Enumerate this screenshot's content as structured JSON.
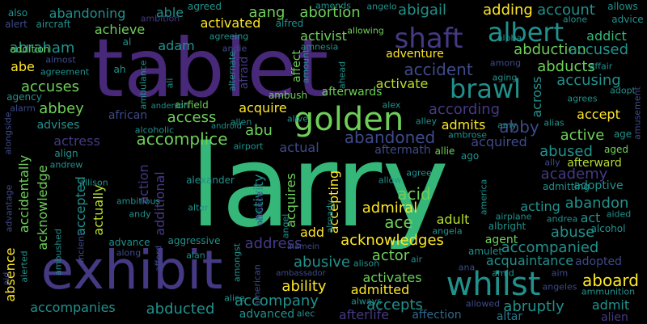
{
  "colors": {
    "background": "#000000",
    "purple": "#482878",
    "dark_teal": "#2a788e",
    "teal": "#21918c",
    "blue_teal": "#31688e",
    "indigo": "#443983",
    "violet": "#3e4a89",
    "green": "#35b779",
    "light_green": "#6ece58",
    "lime": "#b5de2b",
    "yellow": "#fde725"
  },
  "words": [
    {
      "text": "larry",
      "color": "green"
    },
    {
      "text": "tablet",
      "color": "purple"
    },
    {
      "text": "exhibit",
      "color": "indigo"
    },
    {
      "text": "whilst",
      "color": "teal"
    },
    {
      "text": "golden",
      "color": "light_green"
    },
    {
      "text": "shaft",
      "color": "indigo"
    },
    {
      "text": "albert",
      "color": "teal"
    },
    {
      "text": "brawl",
      "color": "teal"
    },
    {
      "text": "accomplice",
      "color": "light_green"
    },
    {
      "text": "abandoned",
      "color": "violet"
    },
    {
      "text": "abduction",
      "color": "light_green"
    },
    {
      "text": "accused",
      "color": "teal"
    },
    {
      "text": "abducts",
      "color": "light_green"
    },
    {
      "text": "accusing",
      "color": "teal"
    },
    {
      "text": "accident",
      "color": "violet"
    },
    {
      "text": "according",
      "color": "indigo"
    },
    {
      "text": "activate",
      "color": "lime"
    },
    {
      "text": "accept",
      "color": "yellow"
    },
    {
      "text": "access",
      "color": "light_green"
    },
    {
      "text": "abbey",
      "color": "light_green"
    },
    {
      "text": "accuses",
      "color": "light_green"
    },
    {
      "text": "abraham",
      "color": "teal"
    },
    {
      "text": "abandoning",
      "color": "teal"
    },
    {
      "text": "achieve",
      "color": "light_green"
    },
    {
      "text": "able",
      "color": "teal"
    },
    {
      "text": "aang",
      "color": "light_green"
    },
    {
      "text": "abortion",
      "color": "light_green"
    },
    {
      "text": "abigail",
      "color": "teal"
    },
    {
      "text": "adding",
      "color": "yellow"
    },
    {
      "text": "account",
      "color": "teal"
    },
    {
      "text": "activated",
      "color": "yellow"
    },
    {
      "text": "activist",
      "color": "light_green"
    },
    {
      "text": "addict",
      "color": "green"
    },
    {
      "text": "adam",
      "color": "teal"
    },
    {
      "text": "abe",
      "color": "yellow"
    },
    {
      "text": "addition",
      "color": "light_green"
    },
    {
      "text": "acquire",
      "color": "yellow"
    },
    {
      "text": "abu",
      "color": "light_green"
    },
    {
      "text": "abby",
      "color": "violet"
    },
    {
      "text": "active",
      "color": "light_green"
    },
    {
      "text": "abused",
      "color": "teal"
    },
    {
      "text": "afterward",
      "color": "lime"
    },
    {
      "text": "academy",
      "color": "indigo"
    },
    {
      "text": "aaron",
      "color": "teal"
    },
    {
      "text": "abandon",
      "color": "teal"
    },
    {
      "text": "acting",
      "color": "teal"
    },
    {
      "text": "act",
      "color": "teal"
    },
    {
      "text": "abuse",
      "color": "teal"
    },
    {
      "text": "accompanied",
      "color": "teal"
    },
    {
      "text": "aboard",
      "color": "yellow"
    },
    {
      "text": "abruptly",
      "color": "teal"
    },
    {
      "text": "admit",
      "color": "teal"
    },
    {
      "text": "actual",
      "color": "violet"
    },
    {
      "text": "acquired",
      "color": "violet"
    },
    {
      "text": "admits",
      "color": "yellow"
    },
    {
      "text": "actress",
      "color": "indigo"
    },
    {
      "text": "acid",
      "color": "light_green"
    },
    {
      "text": "ace",
      "color": "light_green"
    },
    {
      "text": "admiral",
      "color": "yellow"
    },
    {
      "text": "adult",
      "color": "lime"
    },
    {
      "text": "add",
      "color": "yellow"
    },
    {
      "text": "acknowledges",
      "color": "yellow"
    },
    {
      "text": "actor",
      "color": "light_green"
    },
    {
      "text": "address",
      "color": "indigo"
    },
    {
      "text": "abusive",
      "color": "teal"
    },
    {
      "text": "ability",
      "color": "yellow"
    },
    {
      "text": "admitted",
      "color": "yellow"
    },
    {
      "text": "activates",
      "color": "light_green"
    },
    {
      "text": "accepts",
      "color": "teal"
    },
    {
      "text": "acquaintance",
      "color": "teal"
    },
    {
      "text": "adopted",
      "color": "violet"
    },
    {
      "text": "accompanies",
      "color": "teal"
    },
    {
      "text": "abducted",
      "color": "teal"
    },
    {
      "text": "accompany",
      "color": "teal"
    },
    {
      "text": "afterlife",
      "color": "indigo"
    },
    {
      "text": "affection",
      "color": "blue_teal"
    },
    {
      "text": "advanced",
      "color": "teal"
    },
    {
      "text": "altar",
      "color": "dark_teal"
    },
    {
      "text": "alien",
      "color": "indigo"
    },
    {
      "text": "absence",
      "color": "yellow"
    },
    {
      "text": "accidentally",
      "color": "light_green"
    },
    {
      "text": "acknowledge",
      "color": "light_green"
    },
    {
      "text": "accepted",
      "color": "teal"
    },
    {
      "text": "actually",
      "color": "lime"
    },
    {
      "text": "action",
      "color": "indigo"
    },
    {
      "text": "additional",
      "color": "indigo"
    },
    {
      "text": "activity",
      "color": "teal"
    },
    {
      "text": "acquires",
      "color": "light_green"
    },
    {
      "text": "accepting",
      "color": "yellow"
    },
    {
      "text": "afterwards",
      "color": "light_green"
    },
    {
      "text": "across",
      "color": "teal"
    },
    {
      "text": "advises",
      "color": "teal"
    },
    {
      "text": "african",
      "color": "violet"
    },
    {
      "text": "airfield",
      "color": "light_green"
    },
    {
      "text": "afraid",
      "color": "indigo"
    },
    {
      "text": "affect",
      "color": "light_green"
    },
    {
      "text": "adventure",
      "color": "yellow"
    },
    {
      "text": "aftermath",
      "color": "violet"
    },
    {
      "text": "also",
      "color": "teal"
    },
    {
      "text": "alert",
      "color": "violet"
    },
    {
      "text": "aircraft",
      "color": "teal"
    },
    {
      "text": "ambition",
      "color": "indigo"
    },
    {
      "text": "agreed",
      "color": "teal"
    },
    {
      "text": "alfred",
      "color": "teal"
    },
    {
      "text": "amends",
      "color": "teal"
    },
    {
      "text": "angelo",
      "color": "teal"
    },
    {
      "text": "allows",
      "color": "teal"
    },
    {
      "text": "alpha",
      "color": "teal"
    },
    {
      "text": "advice",
      "color": "teal"
    },
    {
      "text": "alone",
      "color": "teal"
    },
    {
      "text": "allowing",
      "color": "light_green"
    },
    {
      "text": "almost",
      "color": "violet"
    },
    {
      "text": "agreement",
      "color": "teal"
    },
    {
      "text": "agency",
      "color": "teal"
    },
    {
      "text": "alarm",
      "color": "violet"
    },
    {
      "text": "ah",
      "color": "teal"
    },
    {
      "text": "al",
      "color": "teal"
    },
    {
      "text": "agreeing",
      "color": "teal"
    },
    {
      "text": "amnesia",
      "color": "teal"
    },
    {
      "text": "among",
      "color": "violet"
    },
    {
      "text": "affair",
      "color": "teal"
    },
    {
      "text": "adopt",
      "color": "teal"
    },
    {
      "text": "agrees",
      "color": "teal"
    },
    {
      "text": "aging",
      "color": "teal"
    },
    {
      "text": "ambulance",
      "color": "teal"
    },
    {
      "text": "ali",
      "color": "teal"
    },
    {
      "text": "alternate",
      "color": "teal"
    },
    {
      "text": "amount",
      "color": "teal"
    },
    {
      "text": "ahead",
      "color": "teal"
    },
    {
      "text": "alex",
      "color": "teal"
    },
    {
      "text": "anderson",
      "color": "teal"
    },
    {
      "text": "ambush",
      "color": "light_green"
    },
    {
      "text": "allen",
      "color": "teal"
    },
    {
      "text": "alive",
      "color": "teal"
    },
    {
      "text": "alley",
      "color": "teal"
    },
    {
      "text": "alias",
      "color": "teal"
    },
    {
      "text": "amusement",
      "color": "violet"
    },
    {
      "text": "amy",
      "color": "teal"
    },
    {
      "text": "ambrose",
      "color": "teal"
    },
    {
      "text": "alcoholic",
      "color": "teal"
    },
    {
      "text": "android",
      "color": "teal"
    },
    {
      "text": "airport",
      "color": "teal"
    },
    {
      "text": "allie",
      "color": "light_green"
    },
    {
      "text": "ago",
      "color": "teal"
    },
    {
      "text": "aged",
      "color": "light_green"
    },
    {
      "text": "age",
      "color": "teal"
    },
    {
      "text": "align",
      "color": "teal"
    },
    {
      "text": "andrew",
      "color": "teal"
    },
    {
      "text": "ally",
      "color": "violet"
    },
    {
      "text": "adoptive",
      "color": "teal"
    },
    {
      "text": "admitting",
      "color": "teal"
    },
    {
      "text": "allow",
      "color": "teal"
    },
    {
      "text": "agree",
      "color": "teal"
    },
    {
      "text": "alexander",
      "color": "teal"
    },
    {
      "text": "allison",
      "color": "teal"
    },
    {
      "text": "ambitious",
      "color": "teal"
    },
    {
      "text": "alter",
      "color": "teal"
    },
    {
      "text": "andy",
      "color": "teal"
    },
    {
      "text": "alliance",
      "color": "violet"
    },
    {
      "text": "already",
      "color": "teal"
    },
    {
      "text": "america",
      "color": "teal"
    },
    {
      "text": "aided",
      "color": "teal"
    },
    {
      "text": "airplane",
      "color": "teal"
    },
    {
      "text": "andrea",
      "color": "teal"
    },
    {
      "text": "albright",
      "color": "teal"
    },
    {
      "text": "alcohol",
      "color": "teal"
    },
    {
      "text": "angel",
      "color": "teal"
    },
    {
      "text": "angela",
      "color": "teal"
    },
    {
      "text": "advance",
      "color": "teal"
    },
    {
      "text": "aggressive",
      "color": "teal"
    },
    {
      "text": "agent",
      "color": "light_green"
    },
    {
      "text": "along",
      "color": "violet"
    },
    {
      "text": "alan",
      "color": "teal"
    },
    {
      "text": "alamein",
      "color": "violet"
    },
    {
      "text": "amulet",
      "color": "teal"
    },
    {
      "text": "alison",
      "color": "teal"
    },
    {
      "text": "air",
      "color": "teal"
    },
    {
      "text": "aid",
      "color": "violet"
    },
    {
      "text": "afford",
      "color": "violet"
    },
    {
      "text": "amongst",
      "color": "teal"
    },
    {
      "text": "ambassador",
      "color": "violet"
    },
    {
      "text": "ana",
      "color": "violet"
    },
    {
      "text": "amid",
      "color": "teal"
    },
    {
      "text": "aim",
      "color": "violet"
    },
    {
      "text": "alice",
      "color": "teal"
    },
    {
      "text": "american",
      "color": "violet"
    },
    {
      "text": "alec",
      "color": "teal"
    },
    {
      "text": "always",
      "color": "teal"
    },
    {
      "text": "allowed",
      "color": "violet"
    },
    {
      "text": "angeles",
      "color": "violet"
    },
    {
      "text": "ammunition",
      "color": "teal"
    },
    {
      "text": "alongside",
      "color": "violet"
    },
    {
      "text": "advantage",
      "color": "violet"
    },
    {
      "text": "ambushed",
      "color": "teal"
    },
    {
      "text": "ancient",
      "color": "violet"
    },
    {
      "text": "alerted",
      "color": "teal"
    },
    {
      "text": "andie",
      "color": "violet"
    }
  ]
}
